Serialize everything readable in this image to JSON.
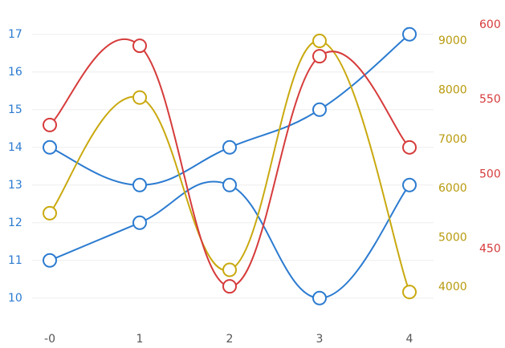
{
  "chart_data": {
    "type": "line",
    "categories": [
      "-0",
      "1",
      "2",
      "3",
      "4"
    ],
    "series": [
      {
        "color": "#2b7bd0",
        "values": [
          14,
          13,
          14,
          15,
          17
        ],
        "axis": "y"
      },
      {
        "color": "#2b7bd0",
        "values": [
          11,
          12,
          13,
          10,
          13
        ],
        "axis": "y"
      },
      {
        "color": "#c9a90f",
        "values": [
          5500,
          7850,
          4350,
          9000,
          3900
        ],
        "axis": "y2"
      },
      {
        "color": "#d63b3b",
        "values": [
          533,
          586,
          425,
          579,
          518
        ],
        "axis": "y3"
      }
    ],
    "ylim": [
      9.4,
      17.25
    ],
    "yticks": [
      10,
      11,
      12,
      13,
      14,
      15,
      16,
      17
    ],
    "ycolor": "#2b7bd0",
    "y2lim": [
      3316,
      9326
    ],
    "y2ticks": [
      4000,
      5000,
      6000,
      7000,
      8000,
      9000
    ],
    "y2color": "#b89a0c",
    "y3lim": [
      402,
      600
    ],
    "y3ticks": [
      450,
      500,
      550,
      600
    ],
    "y3color": "#d63b3b",
    "grid": true
  }
}
